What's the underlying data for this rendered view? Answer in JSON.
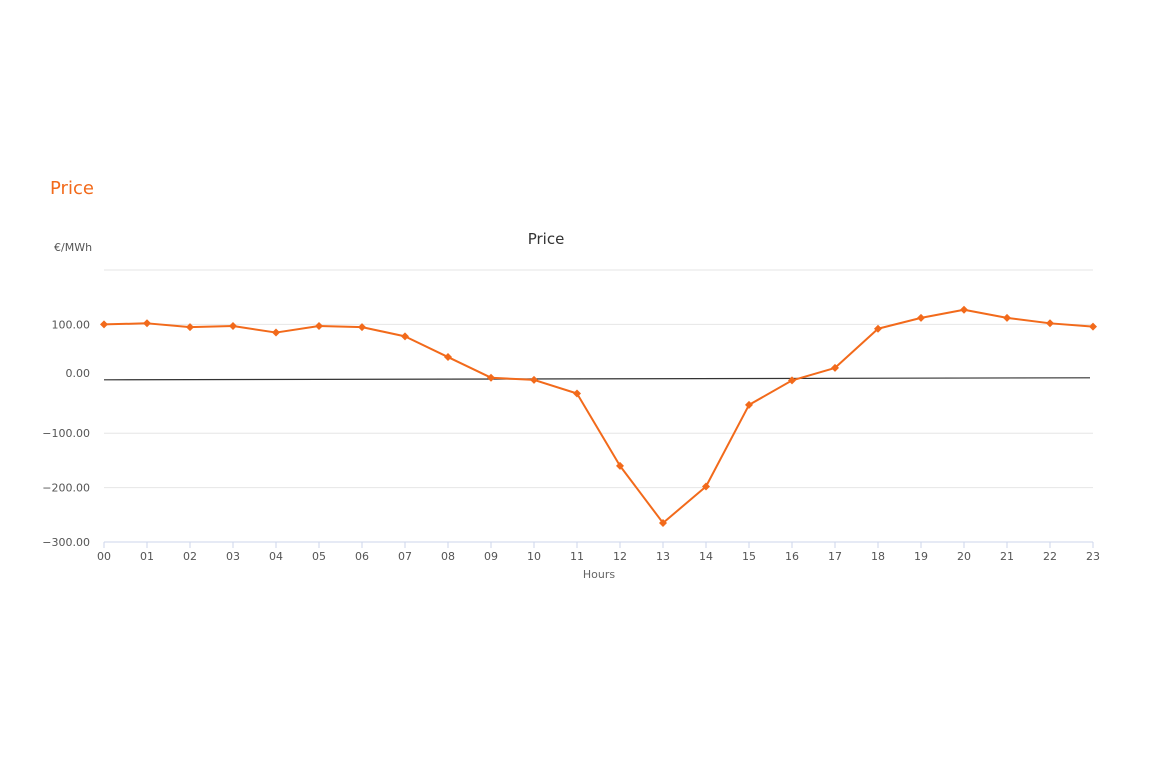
{
  "section": {
    "title": "Price"
  },
  "colors": {
    "accent": "#f26a1b",
    "series": "#f26a1b",
    "grid": "#e6e6e6",
    "zero_line": "#333333",
    "axis": "#ccd6eb"
  },
  "chart_data": {
    "type": "line",
    "title": "Price",
    "ylabel": "€/MWh",
    "xlabel": "Hours",
    "categories": [
      "00",
      "01",
      "02",
      "03",
      "04",
      "05",
      "06",
      "07",
      "08",
      "09",
      "10",
      "11",
      "12",
      "13",
      "14",
      "15",
      "16",
      "17",
      "18",
      "19",
      "20",
      "21",
      "22",
      "23"
    ],
    "series": [
      {
        "values": [
          100,
          102,
          95,
          97,
          85,
          97,
          95,
          78,
          40,
          2,
          -2,
          -27,
          -160,
          -265,
          -198,
          -48,
          -3,
          20,
          92,
          112,
          127,
          112,
          102,
          96
        ]
      }
    ],
    "yticks": [
      -300,
      -200,
      -100,
      0,
      100
    ],
    "ytick_labels": [
      "−300.00",
      "−200.00",
      "−100.00",
      "0.00",
      "100.00"
    ],
    "ylim": [
      -300,
      200
    ],
    "grid": true,
    "legend": "none"
  }
}
